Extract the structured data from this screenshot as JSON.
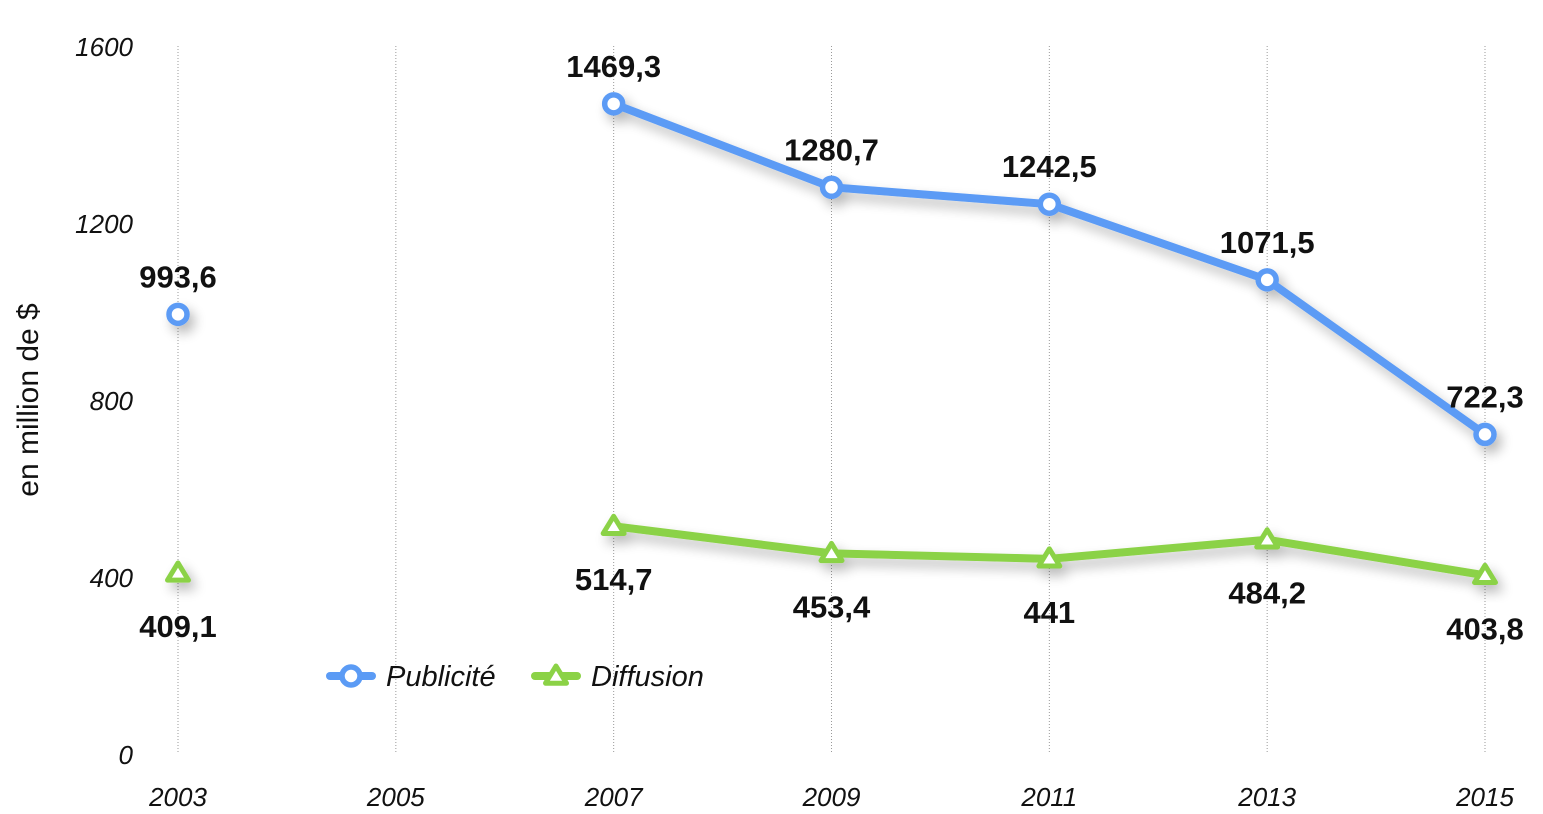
{
  "chart_data": {
    "type": "line",
    "title": "",
    "xlabel": "",
    "ylabel": "en million de $",
    "ylim": [
      0,
      1600
    ],
    "yticks": [
      "0",
      "400",
      "800",
      "1200",
      "1600"
    ],
    "x": [
      "2003",
      "2005",
      "2007",
      "2009",
      "2011",
      "2013",
      "2015"
    ],
    "grid": "vertical",
    "legend": "bottom-center",
    "series": [
      {
        "name": "Publicité",
        "color": "#5b9bf5",
        "marker": "circle",
        "values": [
          993.6,
          null,
          1469.3,
          1280.7,
          1242.5,
          1071.5,
          722.3
        ],
        "labels": [
          "993,6",
          "",
          "1469,3",
          "1280,7",
          "1242,5",
          "1071,5",
          "722,3"
        ],
        "label_position": "above"
      },
      {
        "name": "Diffusion",
        "color": "#8bd246",
        "marker": "triangle",
        "values": [
          409.1,
          null,
          514.7,
          453.4,
          441,
          484.2,
          403.8
        ],
        "labels": [
          "409,1",
          "",
          "514,7",
          "453,4",
          "441",
          "484,2",
          "403,8"
        ],
        "label_position": "below"
      }
    ]
  }
}
